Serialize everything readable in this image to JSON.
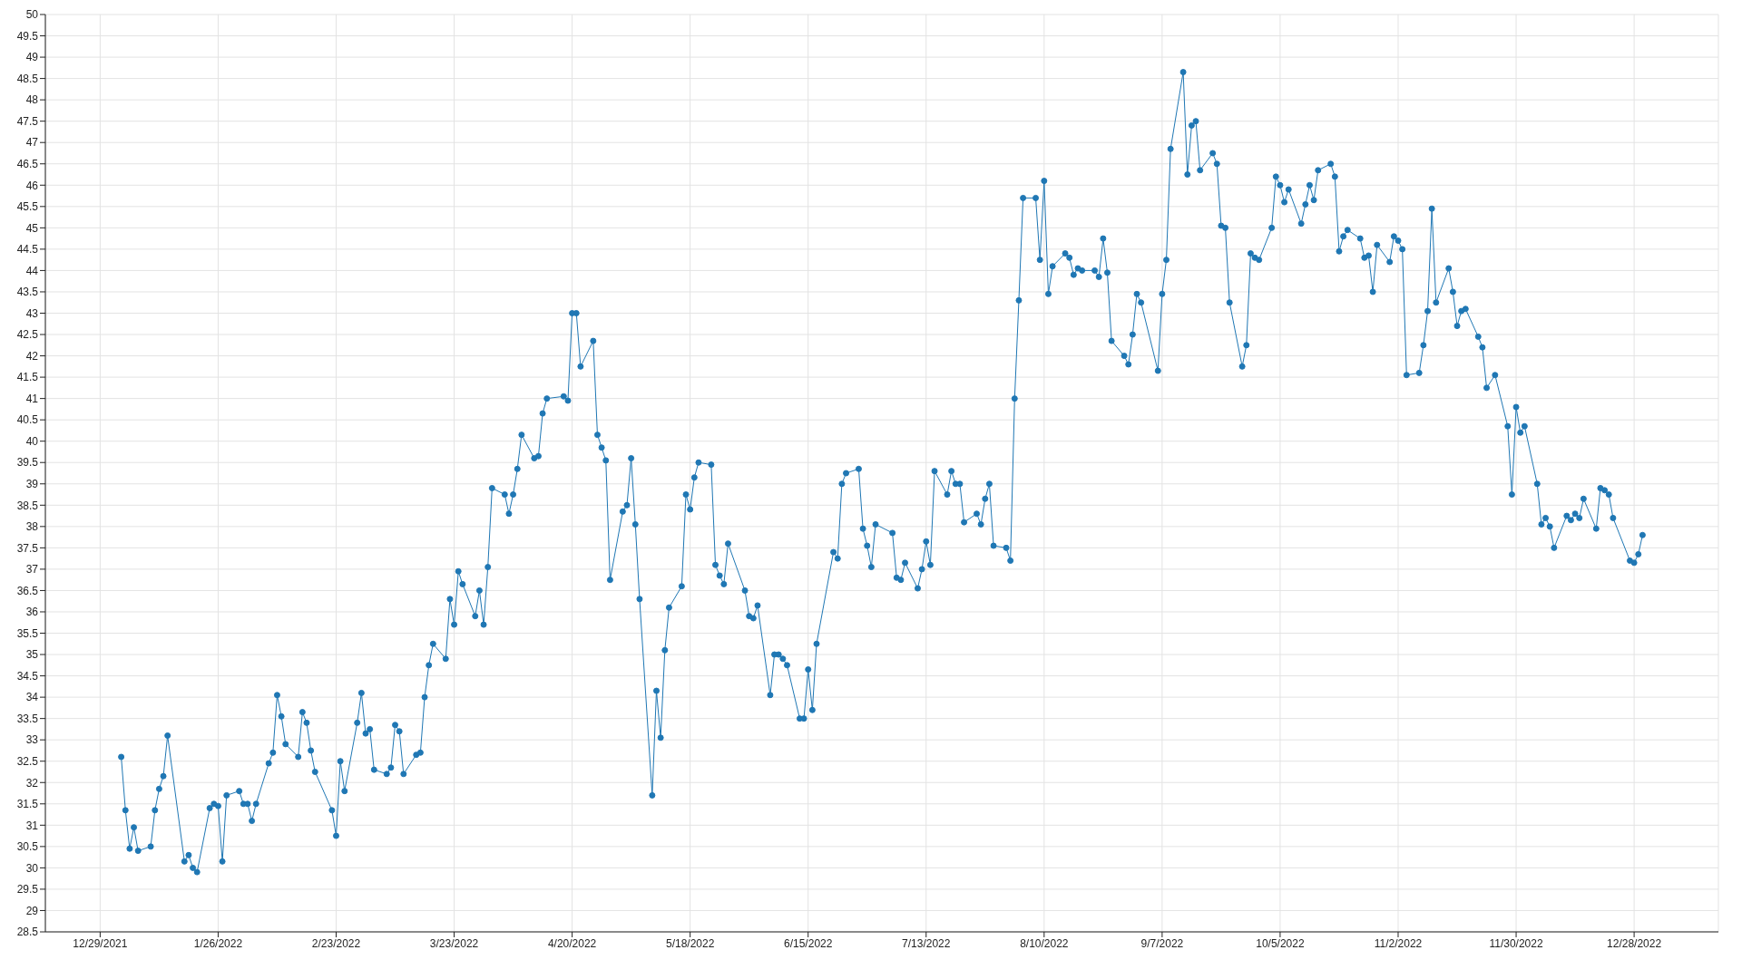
{
  "chart_data": {
    "type": "line",
    "color": "#1f77b4",
    "marker": "circle",
    "line_style": "solid",
    "grid": true,
    "legend": false,
    "xlim": [
      "2021-12-16",
      "2023-01-17"
    ],
    "xticks": [
      {
        "value": "2021-12-29",
        "label": "12/29/2021"
      },
      {
        "value": "2022-01-26",
        "label": "1/26/2022"
      },
      {
        "value": "2022-02-23",
        "label": "2/23/2022"
      },
      {
        "value": "2022-03-23",
        "label": "3/23/2022"
      },
      {
        "value": "2022-04-20",
        "label": "4/20/2022"
      },
      {
        "value": "2022-05-18",
        "label": "5/18/2022"
      },
      {
        "value": "2022-06-15",
        "label": "6/15/2022"
      },
      {
        "value": "2022-07-13",
        "label": "7/13/2022"
      },
      {
        "value": "2022-08-10",
        "label": "8/10/2022"
      },
      {
        "value": "2022-09-07",
        "label": "9/7/2022"
      },
      {
        "value": "2022-10-05",
        "label": "10/5/2022"
      },
      {
        "value": "2022-11-02",
        "label": "11/2/2022"
      },
      {
        "value": "2022-11-30",
        "label": "11/30/2022"
      },
      {
        "value": "2022-12-28",
        "label": "12/28/2022"
      }
    ],
    "ylim": [
      28.5,
      50
    ],
    "yticks": [
      28.5,
      29,
      29.5,
      30,
      30.5,
      31,
      31.5,
      32,
      32.5,
      33,
      33.5,
      34,
      34.5,
      35,
      35.5,
      36,
      36.5,
      37,
      37.5,
      38,
      38.5,
      39,
      39.5,
      40,
      40.5,
      41,
      41.5,
      42,
      42.5,
      43,
      43.5,
      44,
      44.5,
      45,
      45.5,
      46,
      46.5,
      47,
      47.5,
      48,
      48.5,
      49,
      49.5,
      50
    ],
    "x": [
      "2022-01-03",
      "2022-01-04",
      "2022-01-05",
      "2022-01-06",
      "2022-01-07",
      "2022-01-10",
      "2022-01-11",
      "2022-01-12",
      "2022-01-13",
      "2022-01-14",
      "2022-01-18",
      "2022-01-19",
      "2022-01-20",
      "2022-01-21",
      "2022-01-24",
      "2022-01-25",
      "2022-01-26",
      "2022-01-27",
      "2022-01-28",
      "2022-01-31",
      "2022-02-01",
      "2022-02-02",
      "2022-02-03",
      "2022-02-04",
      "2022-02-07",
      "2022-02-08",
      "2022-02-09",
      "2022-02-10",
      "2022-02-11",
      "2022-02-14",
      "2022-02-15",
      "2022-02-16",
      "2022-02-17",
      "2022-02-18",
      "2022-02-22",
      "2022-02-23",
      "2022-02-24",
      "2022-02-25",
      "2022-02-28",
      "2022-03-01",
      "2022-03-02",
      "2022-03-03",
      "2022-03-04",
      "2022-03-07",
      "2022-03-08",
      "2022-03-09",
      "2022-03-10",
      "2022-03-11",
      "2022-03-14",
      "2022-03-15",
      "2022-03-16",
      "2022-03-17",
      "2022-03-18",
      "2022-03-21",
      "2022-03-22",
      "2022-03-23",
      "2022-03-24",
      "2022-03-25",
      "2022-03-28",
      "2022-03-29",
      "2022-03-30",
      "2022-03-31",
      "2022-04-01",
      "2022-04-04",
      "2022-04-05",
      "2022-04-06",
      "2022-04-07",
      "2022-04-08",
      "2022-04-11",
      "2022-04-12",
      "2022-04-13",
      "2022-04-14",
      "2022-04-18",
      "2022-04-19",
      "2022-04-20",
      "2022-04-21",
      "2022-04-22",
      "2022-04-25",
      "2022-04-26",
      "2022-04-27",
      "2022-04-28",
      "2022-04-29",
      "2022-05-02",
      "2022-05-03",
      "2022-05-04",
      "2022-05-05",
      "2022-05-06",
      "2022-05-09",
      "2022-05-10",
      "2022-05-11",
      "2022-05-12",
      "2022-05-13",
      "2022-05-16",
      "2022-05-17",
      "2022-05-18",
      "2022-05-19",
      "2022-05-20",
      "2022-05-23",
      "2022-05-24",
      "2022-05-25",
      "2022-05-26",
      "2022-05-27",
      "2022-05-31",
      "2022-06-01",
      "2022-06-02",
      "2022-06-03",
      "2022-06-06",
      "2022-06-07",
      "2022-06-08",
      "2022-06-09",
      "2022-06-10",
      "2022-06-13",
      "2022-06-14",
      "2022-06-15",
      "2022-06-16",
      "2022-06-17",
      "2022-06-21",
      "2022-06-22",
      "2022-06-23",
      "2022-06-24",
      "2022-06-27",
      "2022-06-28",
      "2022-06-29",
      "2022-06-30",
      "2022-07-01",
      "2022-07-05",
      "2022-07-06",
      "2022-07-07",
      "2022-07-08",
      "2022-07-11",
      "2022-07-12",
      "2022-07-13",
      "2022-07-14",
      "2022-07-15",
      "2022-07-18",
      "2022-07-19",
      "2022-07-20",
      "2022-07-21",
      "2022-07-22",
      "2022-07-25",
      "2022-07-26",
      "2022-07-27",
      "2022-07-28",
      "2022-07-29",
      "2022-08-01",
      "2022-08-02",
      "2022-08-03",
      "2022-08-04",
      "2022-08-05",
      "2022-08-08",
      "2022-08-09",
      "2022-08-10",
      "2022-08-11",
      "2022-08-12",
      "2022-08-15",
      "2022-08-16",
      "2022-08-17",
      "2022-08-18",
      "2022-08-19",
      "2022-08-22",
      "2022-08-23",
      "2022-08-24",
      "2022-08-25",
      "2022-08-26",
      "2022-08-29",
      "2022-08-30",
      "2022-08-31",
      "2022-09-01",
      "2022-09-02",
      "2022-09-06",
      "2022-09-07",
      "2022-09-08",
      "2022-09-09",
      "2022-09-12",
      "2022-09-13",
      "2022-09-14",
      "2022-09-15",
      "2022-09-16",
      "2022-09-19",
      "2022-09-20",
      "2022-09-21",
      "2022-09-22",
      "2022-09-23",
      "2022-09-26",
      "2022-09-27",
      "2022-09-28",
      "2022-09-29",
      "2022-09-30",
      "2022-10-03",
      "2022-10-04",
      "2022-10-05",
      "2022-10-06",
      "2022-10-07",
      "2022-10-10",
      "2022-10-11",
      "2022-10-12",
      "2022-10-13",
      "2022-10-14",
      "2022-10-17",
      "2022-10-18",
      "2022-10-19",
      "2022-10-20",
      "2022-10-21",
      "2022-10-24",
      "2022-10-25",
      "2022-10-26",
      "2022-10-27",
      "2022-10-28",
      "2022-10-31",
      "2022-11-01",
      "2022-11-02",
      "2022-11-03",
      "2022-11-04",
      "2022-11-07",
      "2022-11-08",
      "2022-11-09",
      "2022-11-10",
      "2022-11-11",
      "2022-11-14",
      "2022-11-15",
      "2022-11-16",
      "2022-11-17",
      "2022-11-18",
      "2022-11-21",
      "2022-11-22",
      "2022-11-23",
      "2022-11-25",
      "2022-11-28",
      "2022-11-29",
      "2022-11-30",
      "2022-12-01",
      "2022-12-02",
      "2022-12-05",
      "2022-12-06",
      "2022-12-07",
      "2022-12-08",
      "2022-12-09",
      "2022-12-12",
      "2022-12-13",
      "2022-12-14",
      "2022-12-15",
      "2022-12-16",
      "2022-12-19",
      "2022-12-20",
      "2022-12-21",
      "2022-12-22",
      "2022-12-23",
      "2022-12-27",
      "2022-12-28",
      "2022-12-29",
      "2022-12-30"
    ],
    "values": [
      32.6,
      31.35,
      30.45,
      30.95,
      30.4,
      30.5,
      31.35,
      31.85,
      32.15,
      33.1,
      30.15,
      30.3,
      30.0,
      29.9,
      31.4,
      31.5,
      31.45,
      30.15,
      31.7,
      31.8,
      31.5,
      31.5,
      31.1,
      31.5,
      32.45,
      32.7,
      34.05,
      33.55,
      32.9,
      32.6,
      33.65,
      33.4,
      32.75,
      32.25,
      31.35,
      30.75,
      32.5,
      31.8,
      33.4,
      34.1,
      33.15,
      33.25,
      32.3,
      32.2,
      32.35,
      33.35,
      33.2,
      32.2,
      32.65,
      32.7,
      34.0,
      34.75,
      35.25,
      34.9,
      36.3,
      35.7,
      36.95,
      36.65,
      35.9,
      36.5,
      35.7,
      37.05,
      38.9,
      38.75,
      38.3,
      38.75,
      39.35,
      40.15,
      39.6,
      39.65,
      40.65,
      41.0,
      41.05,
      40.95,
      43.0,
      43.0,
      41.75,
      42.35,
      40.15,
      39.85,
      39.55,
      36.75,
      38.35,
      38.5,
      39.6,
      38.05,
      36.3,
      31.7,
      34.15,
      33.05,
      35.1,
      36.1,
      36.6,
      38.75,
      38.4,
      39.15,
      39.5,
      39.45,
      37.1,
      36.85,
      36.65,
      37.6,
      36.5,
      35.9,
      35.85,
      36.15,
      34.05,
      35.0,
      35.0,
      34.9,
      34.75,
      33.5,
      33.5,
      34.65,
      33.7,
      35.25,
      37.4,
      37.25,
      39.0,
      39.25,
      39.35,
      37.95,
      37.55,
      37.05,
      38.05,
      37.85,
      36.8,
      36.75,
      37.15,
      36.55,
      37.0,
      37.65,
      37.1,
      39.3,
      38.75,
      39.3,
      39.0,
      39.0,
      38.1,
      38.3,
      38.05,
      38.65,
      39.0,
      37.55,
      37.5,
      37.2,
      41.0,
      43.3,
      45.7,
      45.7,
      44.25,
      46.1,
      43.45,
      44.1,
      44.4,
      44.3,
      43.9,
      44.05,
      44.0,
      44.0,
      43.85,
      44.75,
      43.95,
      42.35,
      42.0,
      41.8,
      42.5,
      43.45,
      43.25,
      41.65,
      43.45,
      44.25,
      46.85,
      48.65,
      46.25,
      47.4,
      47.5,
      46.35,
      46.75,
      46.5,
      45.05,
      45.0,
      43.25,
      41.75,
      42.25,
      44.4,
      44.3,
      44.25,
      45.0,
      46.2,
      46.0,
      45.6,
      45.9,
      45.1,
      45.55,
      46.0,
      45.65,
      46.35,
      46.5,
      46.2,
      44.45,
      44.8,
      44.95,
      44.75,
      44.3,
      44.35,
      43.5,
      44.6,
      44.2,
      44.8,
      44.7,
      44.5,
      41.55,
      41.6,
      42.25,
      43.05,
      45.45,
      43.25,
      44.05,
      43.5,
      42.7,
      43.05,
      43.1,
      42.45,
      42.2,
      41.25,
      41.55,
      40.35,
      38.75,
      40.8,
      40.2,
      40.35,
      39.0,
      38.05,
      38.2,
      38.0,
      37.5,
      38.25,
      38.15,
      38.3,
      38.2,
      38.65,
      37.95,
      38.9,
      38.85,
      38.75,
      38.2,
      37.2,
      37.15,
      37.35,
      37.8
    ]
  }
}
